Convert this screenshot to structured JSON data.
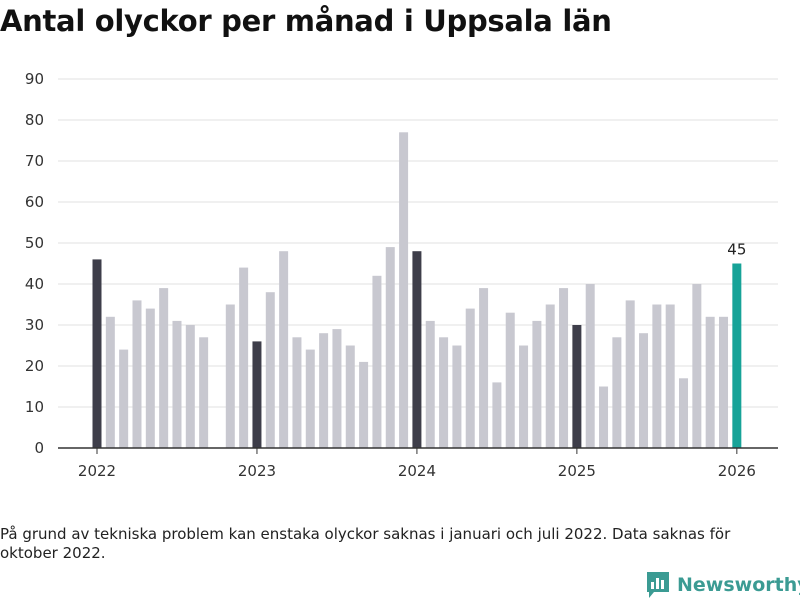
{
  "colors": {
    "highlight": "#3e3e4a",
    "regular": "#c8c8d0",
    "latest": "#17a398",
    "brand": "#3b9b93"
  },
  "chart_data": {
    "type": "bar",
    "title": "Antal olyckor per månad i Uppsala län",
    "xlabel": "",
    "ylabel": "",
    "ylim": [
      0,
      90
    ],
    "yticks": [
      "0",
      "10",
      "20",
      "30",
      "40",
      "50",
      "60",
      "70",
      "80",
      "90"
    ],
    "xticks": [
      "2022",
      "2023",
      "2024",
      "2025",
      "2026"
    ],
    "bars": [
      {
        "period": "2022-01",
        "value": 46,
        "style": "highlight"
      },
      {
        "period": "2022-02",
        "value": 32,
        "style": "regular"
      },
      {
        "period": "2022-03",
        "value": 24,
        "style": "regular"
      },
      {
        "period": "2022-04",
        "value": 36,
        "style": "regular"
      },
      {
        "period": "2022-05",
        "value": 34,
        "style": "regular"
      },
      {
        "period": "2022-06",
        "value": 39,
        "style": "regular"
      },
      {
        "period": "2022-07",
        "value": 31,
        "style": "regular"
      },
      {
        "period": "2022-08",
        "value": 30,
        "style": "regular"
      },
      {
        "period": "2022-09",
        "value": 27,
        "style": "regular"
      },
      {
        "period": "2022-10",
        "value": null,
        "style": "regular"
      },
      {
        "period": "2022-11",
        "value": 35,
        "style": "regular"
      },
      {
        "period": "2022-12",
        "value": 44,
        "style": "regular"
      },
      {
        "period": "2023-01",
        "value": 26,
        "style": "highlight"
      },
      {
        "period": "2023-02",
        "value": 38,
        "style": "regular"
      },
      {
        "period": "2023-03",
        "value": 48,
        "style": "regular"
      },
      {
        "period": "2023-04",
        "value": 27,
        "style": "regular"
      },
      {
        "period": "2023-05",
        "value": 24,
        "style": "regular"
      },
      {
        "period": "2023-06",
        "value": 28,
        "style": "regular"
      },
      {
        "period": "2023-07",
        "value": 29,
        "style": "regular"
      },
      {
        "period": "2023-08",
        "value": 25,
        "style": "regular"
      },
      {
        "period": "2023-09",
        "value": 21,
        "style": "regular"
      },
      {
        "period": "2023-10",
        "value": 42,
        "style": "regular"
      },
      {
        "period": "2023-11",
        "value": 49,
        "style": "regular"
      },
      {
        "period": "2023-12",
        "value": 77,
        "style": "regular"
      },
      {
        "period": "2024-01",
        "value": 48,
        "style": "highlight"
      },
      {
        "period": "2024-02",
        "value": 31,
        "style": "regular"
      },
      {
        "period": "2024-03",
        "value": 27,
        "style": "regular"
      },
      {
        "period": "2024-04",
        "value": 25,
        "style": "regular"
      },
      {
        "period": "2024-05",
        "value": 34,
        "style": "regular"
      },
      {
        "period": "2024-06",
        "value": 39,
        "style": "regular"
      },
      {
        "period": "2024-07",
        "value": 16,
        "style": "regular"
      },
      {
        "period": "2024-08",
        "value": 33,
        "style": "regular"
      },
      {
        "period": "2024-09",
        "value": 25,
        "style": "regular"
      },
      {
        "period": "2024-10",
        "value": 31,
        "style": "regular"
      },
      {
        "period": "2024-11",
        "value": 35,
        "style": "regular"
      },
      {
        "period": "2024-12",
        "value": 39,
        "style": "regular"
      },
      {
        "period": "2025-01",
        "value": 30,
        "style": "highlight"
      },
      {
        "period": "2025-02",
        "value": 40,
        "style": "regular"
      },
      {
        "period": "2025-03",
        "value": 15,
        "style": "regular"
      },
      {
        "period": "2025-04",
        "value": 27,
        "style": "regular"
      },
      {
        "period": "2025-05",
        "value": 36,
        "style": "regular"
      },
      {
        "period": "2025-06",
        "value": 28,
        "style": "regular"
      },
      {
        "period": "2025-07",
        "value": 35,
        "style": "regular"
      },
      {
        "period": "2025-08",
        "value": 35,
        "style": "regular"
      },
      {
        "period": "2025-09",
        "value": 17,
        "style": "regular"
      },
      {
        "period": "2025-10",
        "value": 40,
        "style": "regular"
      },
      {
        "period": "2025-11",
        "value": 32,
        "style": "regular"
      },
      {
        "period": "2025-12",
        "value": 32,
        "style": "regular"
      },
      {
        "period": "2026-01",
        "value": 45,
        "style": "latest"
      }
    ],
    "annotation": {
      "period": "2026-01",
      "label": "45"
    }
  },
  "footnote": "På grund av tekniska problem kan enstaka olyckor saknas i januari och juli 2022. Data saknas för oktober 2022.",
  "brand": {
    "name": "Newsworthy",
    "icon": "newsworthy-logo-icon"
  }
}
